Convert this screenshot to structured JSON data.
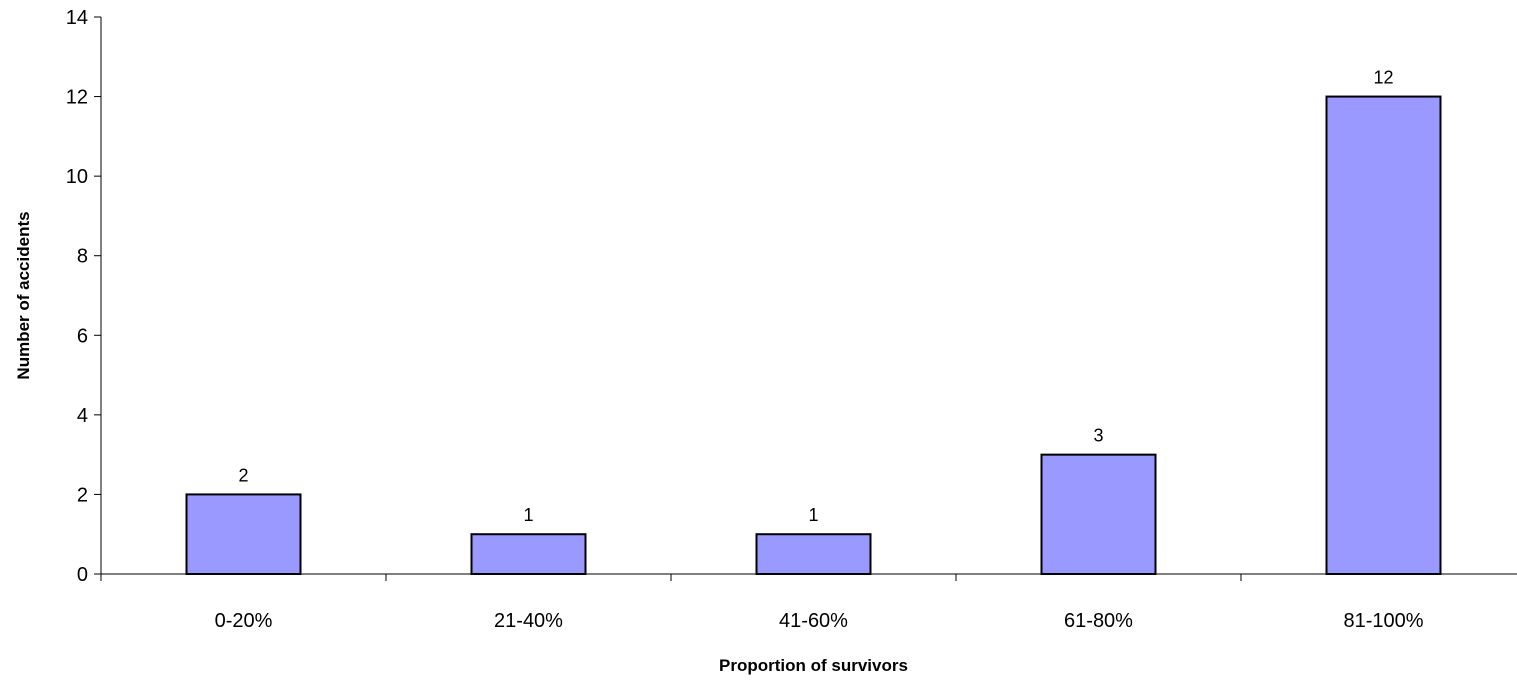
{
  "chart_data": {
    "type": "bar",
    "categories": [
      "0-20%",
      "21-40%",
      "41-60%",
      "61-80%",
      "81-100%"
    ],
    "values": [
      2,
      1,
      1,
      3,
      12
    ],
    "data_labels": [
      "2",
      "1",
      "1",
      "3",
      "12"
    ],
    "xlabel": "Proportion of survivors",
    "ylabel": "Number of accidents",
    "ylim": [
      0,
      14
    ],
    "yticks": [
      0,
      2,
      4,
      6,
      8,
      10,
      12,
      14
    ],
    "ytick_labels": [
      "0",
      "2",
      "4",
      "6",
      "8",
      "10",
      "12",
      "14"
    ],
    "grid": false,
    "legend": "none",
    "bar_color": "#9999ff",
    "bar_edge_color": "#000000"
  }
}
